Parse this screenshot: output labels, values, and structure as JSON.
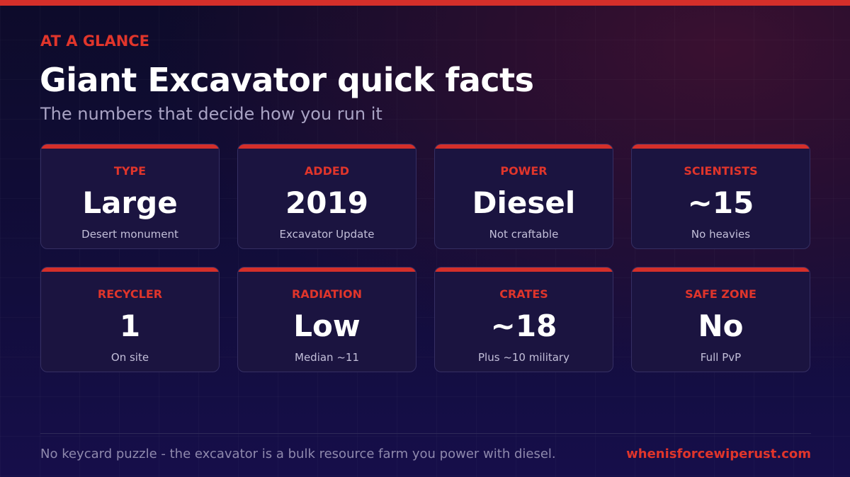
{
  "header": {
    "eyebrow": "AT A GLANCE",
    "title": "Giant Excavator quick facts",
    "subtitle": "The numbers that decide how you run it"
  },
  "cards": [
    {
      "label": "TYPE",
      "value": "Large",
      "note": "Desert monument"
    },
    {
      "label": "ADDED",
      "value": "2019",
      "note": "Excavator Update"
    },
    {
      "label": "POWER",
      "value": "Diesel",
      "note": "Not craftable"
    },
    {
      "label": "SCIENTISTS",
      "value": "~15",
      "note": "No heavies"
    },
    {
      "label": "RECYCLER",
      "value": "1",
      "note": "On site"
    },
    {
      "label": "RADIATION",
      "value": "Low",
      "note": "Median ~11"
    },
    {
      "label": "CRATES",
      "value": "~18",
      "note": "Plus ~10 military"
    },
    {
      "label": "SAFE ZONE",
      "value": "No",
      "note": "Full PvP"
    }
  ],
  "footer": {
    "note": "No keycard puzzle - the excavator is a bulk resource farm you power with diesel.",
    "site": "whenisforcewiperust.com"
  }
}
